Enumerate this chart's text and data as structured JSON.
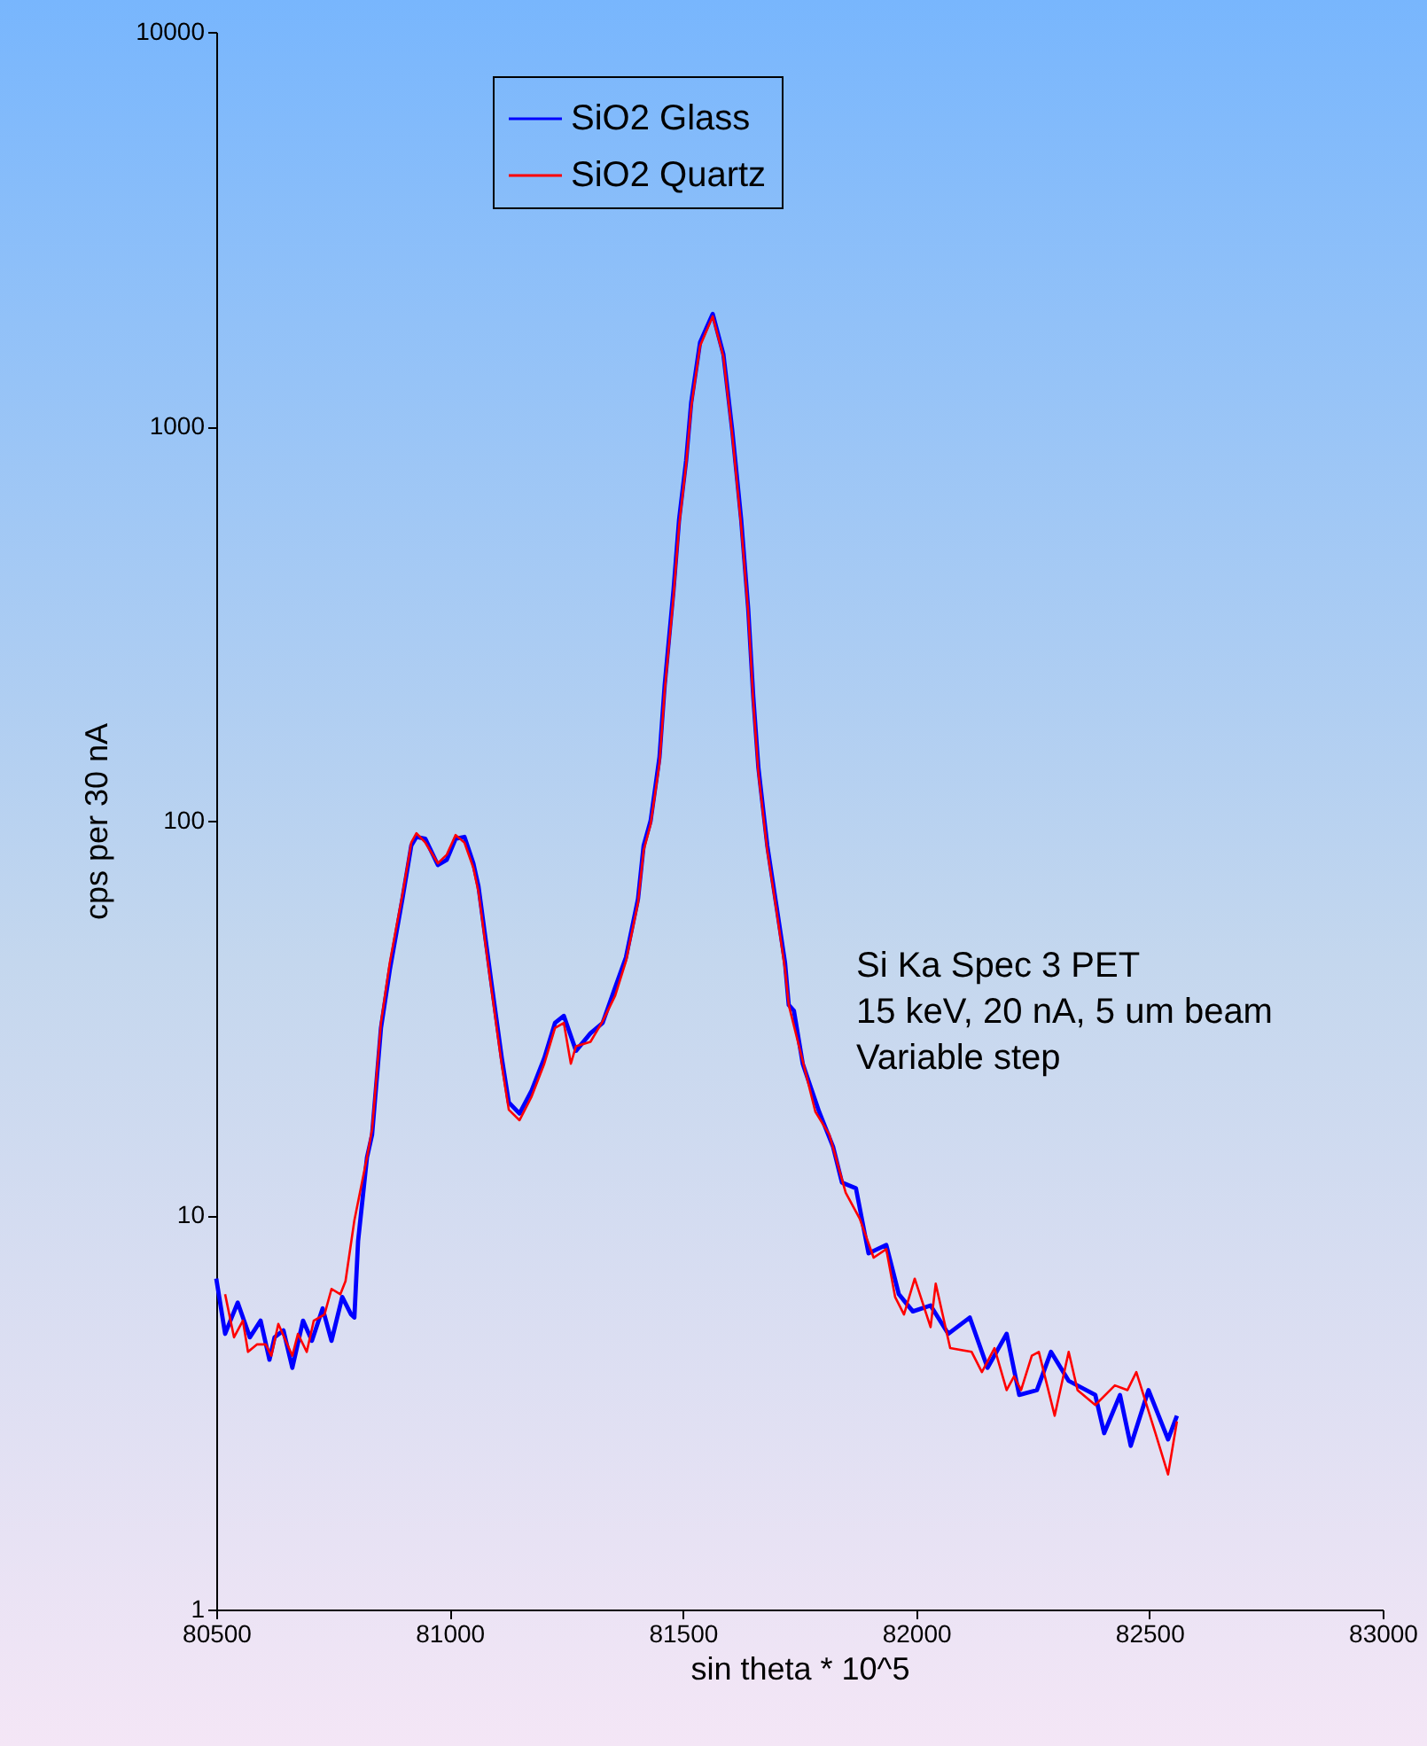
{
  "chart_data": {
    "type": "line",
    "xlabel": "sin theta * 10^5",
    "ylabel": "cps per 30 nA",
    "annotations": [
      "Si Ka Spec 3 PET",
      "15 keV, 20 nA, 5 um beam",
      "Variable step"
    ],
    "log": "y",
    "grid": false,
    "legend": "top",
    "marker": "none",
    "line_style": "solid",
    "xlim": [
      80500,
      83000
    ],
    "xticks": [
      80500,
      81000,
      81500,
      82000,
      82500,
      83000
    ],
    "ylim": [
      1,
      10000
    ],
    "yticks": [
      1,
      10,
      100,
      1000,
      10000
    ],
    "series": [
      {
        "name": "SiO2 Glass",
        "color": "#0000ff",
        "x": [
          80500,
          80519,
          80546,
          80572,
          80595,
          80614,
          80625,
          80644,
          80663,
          80686,
          80705,
          80728,
          80747,
          80770,
          80789,
          80796,
          80804,
          80823,
          80834,
          80853,
          80872,
          80899,
          80918,
          80929,
          80948,
          80975,
          80994,
          81013,
          81032,
          81051,
          81062,
          81089,
          81112,
          81127,
          81150,
          81176,
          81203,
          81226,
          81245,
          81271,
          81302,
          81328,
          81355,
          81378,
          81404,
          81416,
          81431,
          81450,
          81461,
          81480,
          81492,
          81507,
          81518,
          81537,
          81564,
          81587,
          81606,
          81625,
          81640,
          81651,
          81662,
          81681,
          81700,
          81719,
          81727,
          81738,
          81757,
          81792,
          81822,
          81841,
          81871,
          81898,
          81936,
          81963,
          81993,
          82031,
          82069,
          82115,
          82153,
          82194,
          82221,
          82259,
          82289,
          82327,
          82384,
          82403,
          82437,
          82460,
          82498,
          82540,
          82559
        ],
        "values": [
          6.9,
          5.0,
          6.0,
          4.9,
          5.4,
          4.3,
          4.9,
          5.1,
          4.1,
          5.4,
          4.8,
          5.8,
          4.8,
          6.2,
          5.6,
          5.5,
          8.6,
          14.0,
          16.0,
          29.8,
          41.9,
          63.4,
          86.5,
          91,
          90,
          77.2,
          79.6,
          90,
          91,
          78,
          68.2,
          39.4,
          25.0,
          19.3,
          18.1,
          20.7,
          25.0,
          30.7,
          32.0,
          26.1,
          28.9,
          30.7,
          37.8,
          45,
          63.4,
          86.5,
          100,
          145,
          220,
          384,
          581,
          817,
          1151,
          1634,
          1928,
          1521,
          974,
          581,
          346,
          206,
          136,
          86.5,
          61.5,
          43.7,
          34.1,
          33.0,
          24.2,
          18.3,
          14.9,
          12.1,
          11.7,
          8.0,
          8.4,
          6.3,
          5.7,
          5.9,
          5.0,
          5.5,
          4.1,
          5.0,
          3.5,
          3.6,
          4.5,
          3.8,
          3.5,
          2.8,
          3.5,
          2.6,
          3.6,
          2.7,
          3.1
        ]
      },
      {
        "name": "SiO2 Quartz",
        "color": "#ff0000",
        "x": [
          80519,
          80538,
          80557,
          80568,
          80587,
          80606,
          80618,
          80633,
          80663,
          80675,
          80694,
          80709,
          80732,
          80747,
          80766,
          80777,
          80796,
          80823,
          80834,
          80853,
          80872,
          80899,
          80918,
          80929,
          80948,
          80975,
          80994,
          81013,
          81032,
          81051,
          81062,
          81089,
          81112,
          81127,
          81150,
          81176,
          81203,
          81226,
          81245,
          81260,
          81271,
          81302,
          81328,
          81355,
          81378,
          81404,
          81416,
          81431,
          81450,
          81461,
          81480,
          81492,
          81507,
          81518,
          81537,
          81564,
          81587,
          81606,
          81625,
          81640,
          81651,
          81662,
          81681,
          81700,
          81719,
          81727,
          81784,
          81814,
          81849,
          81879,
          81909,
          81936,
          81955,
          81974,
          81997,
          82031,
          82042,
          82073,
          82119,
          82141,
          82168,
          82194,
          82210,
          82225,
          82248,
          82263,
          82297,
          82327,
          82346,
          82384,
          82426,
          82453,
          82472,
          82513,
          82540,
          82559
        ],
        "values": [
          6.3,
          4.9,
          5.4,
          4.5,
          4.7,
          4.7,
          4.4,
          5.3,
          4.4,
          5.0,
          4.5,
          5.4,
          5.6,
          6.5,
          6.3,
          6.8,
          9.7,
          14.0,
          16.5,
          30.7,
          43.7,
          65,
          88,
          93,
          88,
          78,
          82,
          92,
          88,
          76,
          66,
          38,
          24,
          18.5,
          17.4,
          20.0,
          24.2,
          29.8,
          30.7,
          24.2,
          26.8,
          27.5,
          31,
          36,
          44,
          62,
          84,
          98,
          140,
          213,
          370,
          560,
          800,
          1120,
          1600,
          1900,
          1500,
          950,
          560,
          340,
          200,
          132,
          84,
          60,
          42,
          34.1,
          18.3,
          16.0,
          11.4,
          9.8,
          7.8,
          8.2,
          6.2,
          5.6,
          6.9,
          5.2,
          6.7,
          4.6,
          4.5,
          4.0,
          4.6,
          3.6,
          3.9,
          3.6,
          4.4,
          4.5,
          3.1,
          4.5,
          3.6,
          3.3,
          3.7,
          3.6,
          4.0,
          2.8,
          2.2,
          3.0
        ]
      }
    ]
  }
}
